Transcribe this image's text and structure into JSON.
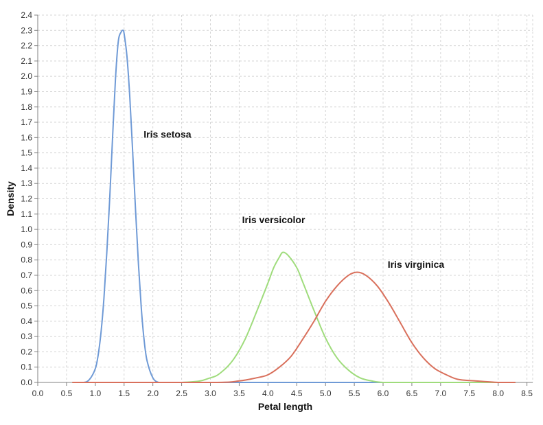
{
  "chart_data": {
    "type": "line",
    "xlabel": "Petal length",
    "ylabel": "Density",
    "xlim": [
      0.0,
      8.6
    ],
    "ylim": [
      0.0,
      2.4
    ],
    "x_ticks": [
      "0.0",
      "0.5",
      "1.0",
      "1.5",
      "2.0",
      "2.5",
      "3.0",
      "3.5",
      "4.0",
      "4.5",
      "5.0",
      "5.5",
      "6.0",
      "6.5",
      "7.0",
      "7.5",
      "8.0",
      "8.5"
    ],
    "y_ticks": [
      "0.0",
      "0.1",
      "0.2",
      "0.3",
      "0.4",
      "0.5",
      "0.6",
      "0.7",
      "0.8",
      "0.9",
      "1.0",
      "1.1",
      "1.2",
      "1.3",
      "1.4",
      "1.5",
      "1.6",
      "1.7",
      "1.8",
      "1.9",
      "2.0",
      "2.1",
      "2.2",
      "2.3",
      "2.4"
    ],
    "grid": true,
    "legend": "none",
    "series": [
      {
        "color": "#6f9ad6",
        "x": [
          0.6,
          0.8,
          0.9,
          1.0,
          1.05,
          1.1,
          1.15,
          1.2,
          1.25,
          1.3,
          1.35,
          1.4,
          1.45,
          1.48,
          1.5,
          1.55,
          1.6,
          1.65,
          1.7,
          1.75,
          1.8,
          1.85,
          1.9,
          2.0,
          2.1,
          2.2,
          3.0,
          5.0,
          8.3
        ],
        "y": [
          0.0,
          0.0,
          0.02,
          0.09,
          0.18,
          0.33,
          0.55,
          0.85,
          1.2,
          1.6,
          1.98,
          2.23,
          2.29,
          2.3,
          2.28,
          2.13,
          1.86,
          1.5,
          1.12,
          0.77,
          0.48,
          0.27,
          0.14,
          0.03,
          0.0,
          0.0,
          0.0,
          0.0,
          0.0
        ]
      },
      {
        "color": "#9fdc7c",
        "x": [
          0.6,
          2.5,
          3.0,
          3.2,
          3.4,
          3.6,
          3.8,
          4.0,
          4.1,
          4.2,
          4.26,
          4.35,
          4.5,
          4.6,
          4.8,
          5.0,
          5.2,
          5.4,
          5.6,
          5.8,
          6.0,
          6.5,
          8.3
        ],
        "y": [
          0.0,
          0.0,
          0.03,
          0.07,
          0.15,
          0.28,
          0.46,
          0.65,
          0.75,
          0.82,
          0.85,
          0.83,
          0.75,
          0.66,
          0.47,
          0.29,
          0.16,
          0.08,
          0.03,
          0.01,
          0.0,
          0.0,
          0.0
        ],
        "label": "Iris versicolor"
      },
      {
        "color": "#d9705c",
        "x": [
          0.6,
          3.0,
          3.5,
          3.8,
          4.0,
          4.2,
          4.4,
          4.6,
          4.8,
          5.0,
          5.2,
          5.4,
          5.55,
          5.7,
          5.9,
          6.1,
          6.3,
          6.5,
          6.7,
          6.9,
          7.1,
          7.3,
          7.6,
          8.0,
          8.3
        ],
        "y": [
          0.0,
          0.0,
          0.01,
          0.03,
          0.05,
          0.1,
          0.17,
          0.28,
          0.4,
          0.53,
          0.63,
          0.7,
          0.72,
          0.7,
          0.63,
          0.52,
          0.39,
          0.26,
          0.16,
          0.09,
          0.05,
          0.02,
          0.01,
          0.0,
          0.0
        ],
        "label": "Iris virginica"
      }
    ],
    "annotations": [
      {
        "text": "Iris setosa",
        "x": 1.84,
        "y": 1.6
      },
      {
        "text": "Iris versicolor",
        "x": 3.55,
        "y": 1.04
      },
      {
        "text": "Iris virginica",
        "x": 6.08,
        "y": 0.75
      }
    ]
  }
}
